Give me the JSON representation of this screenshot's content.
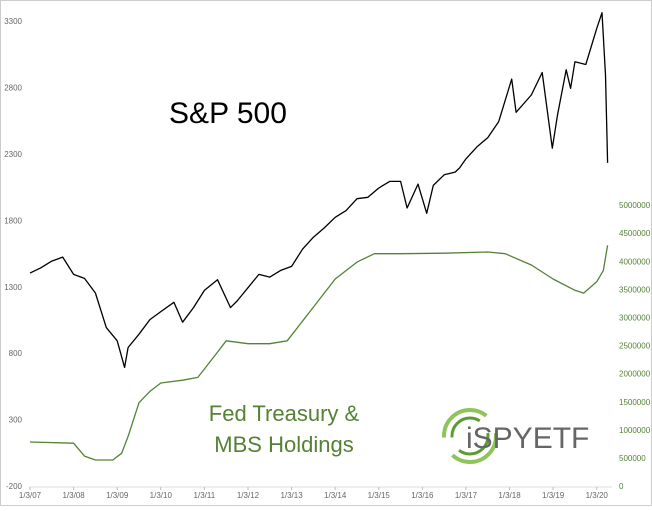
{
  "chart_data": {
    "type": "line",
    "annotations": [
      "S&P 500",
      "Fed Treasury &",
      "MBS Holdings"
    ],
    "logo": "iSPYETF",
    "xlim": [
      2007,
      2020.35
    ],
    "xticks": [
      {
        "value": 2007,
        "label": "1/3/07"
      },
      {
        "value": 2008,
        "label": "1/3/08"
      },
      {
        "value": 2009,
        "label": "1/3/09"
      },
      {
        "value": 2010,
        "label": "1/3/10"
      },
      {
        "value": 2011,
        "label": "1/3/11"
      },
      {
        "value": 2012,
        "label": "1/3/12"
      },
      {
        "value": 2013,
        "label": "1/3/13"
      },
      {
        "value": 2014,
        "label": "1/3/14"
      },
      {
        "value": 2015,
        "label": "1/3/15"
      },
      {
        "value": 2016,
        "label": "1/3/16"
      },
      {
        "value": 2017,
        "label": "1/3/17"
      },
      {
        "value": 2018,
        "label": "1/3/18"
      },
      {
        "value": 2019,
        "label": "1/3/19"
      },
      {
        "value": 2020,
        "label": "1/3/20"
      }
    ],
    "ylim": [
      -200,
      3375
    ],
    "yticks": [
      -200,
      300,
      800,
      1300,
      1800,
      2300,
      2800,
      3300
    ],
    "y2lim": [
      0,
      8450000
    ],
    "y2ticks": [
      0,
      500000,
      1000000,
      1500000,
      2000000,
      2500000,
      3000000,
      3500000,
      4000000,
      4500000,
      5000000
    ],
    "series": [
      {
        "color": "#000000",
        "x": [
          2007.0,
          2007.25,
          2007.5,
          2007.75,
          2008.0,
          2008.25,
          2008.5,
          2008.75,
          2009.0,
          2009.17,
          2009.25,
          2009.5,
          2009.75,
          2010.0,
          2010.3,
          2010.5,
          2010.75,
          2011.0,
          2011.3,
          2011.6,
          2011.75,
          2012.0,
          2012.25,
          2012.5,
          2012.75,
          2013.0,
          2013.25,
          2013.5,
          2013.75,
          2014.0,
          2014.25,
          2014.5,
          2014.75,
          2015.0,
          2015.25,
          2015.5,
          2015.65,
          2015.9,
          2016.1,
          2016.25,
          2016.5,
          2016.75,
          2016.85,
          2017.0,
          2017.25,
          2017.5,
          2017.75,
          2018.05,
          2018.15,
          2018.5,
          2018.75,
          2018.98,
          2019.1,
          2019.3,
          2019.4,
          2019.5,
          2019.75,
          2020.0,
          2020.12,
          2020.2,
          2020.25
        ],
        "values": [
          1410,
          1450,
          1500,
          1530,
          1400,
          1370,
          1260,
          1000,
          900,
          700,
          850,
          950,
          1060,
          1120,
          1190,
          1040,
          1150,
          1280,
          1360,
          1150,
          1200,
          1300,
          1400,
          1380,
          1430,
          1460,
          1590,
          1680,
          1750,
          1830,
          1880,
          1970,
          1980,
          2050,
          2100,
          2100,
          1900,
          2080,
          1860,
          2070,
          2150,
          2170,
          2200,
          2270,
          2360,
          2430,
          2550,
          2870,
          2620,
          2750,
          2920,
          2350,
          2600,
          2940,
          2800,
          3000,
          2980,
          3250,
          3370,
          2900,
          2240
        ]
      },
      {
        "color": "#548235",
        "axis": "y2",
        "x": [
          2007.0,
          2008.0,
          2008.25,
          2008.5,
          2008.9,
          2009.1,
          2009.25,
          2009.5,
          2009.75,
          2010.0,
          2010.5,
          2010.85,
          2011.0,
          2011.3,
          2011.5,
          2012.0,
          2012.5,
          2012.9,
          2013.0,
          2013.5,
          2014.0,
          2014.5,
          2014.9,
          2015.5,
          2016.5,
          2017.5,
          2017.9,
          2018.5,
          2019.0,
          2019.5,
          2019.7,
          2020.0,
          2020.15,
          2020.25
        ],
        "values": [
          800000,
          780000,
          550000,
          480000,
          480000,
          600000,
          900000,
          1500000,
          1700000,
          1850000,
          1900000,
          1950000,
          2100000,
          2400000,
          2600000,
          2550000,
          2550000,
          2600000,
          2700000,
          3200000,
          3700000,
          4000000,
          4150000,
          4150000,
          4160000,
          4180000,
          4150000,
          3950000,
          3700000,
          3500000,
          3450000,
          3650000,
          3850000,
          4300000
        ]
      }
    ]
  }
}
